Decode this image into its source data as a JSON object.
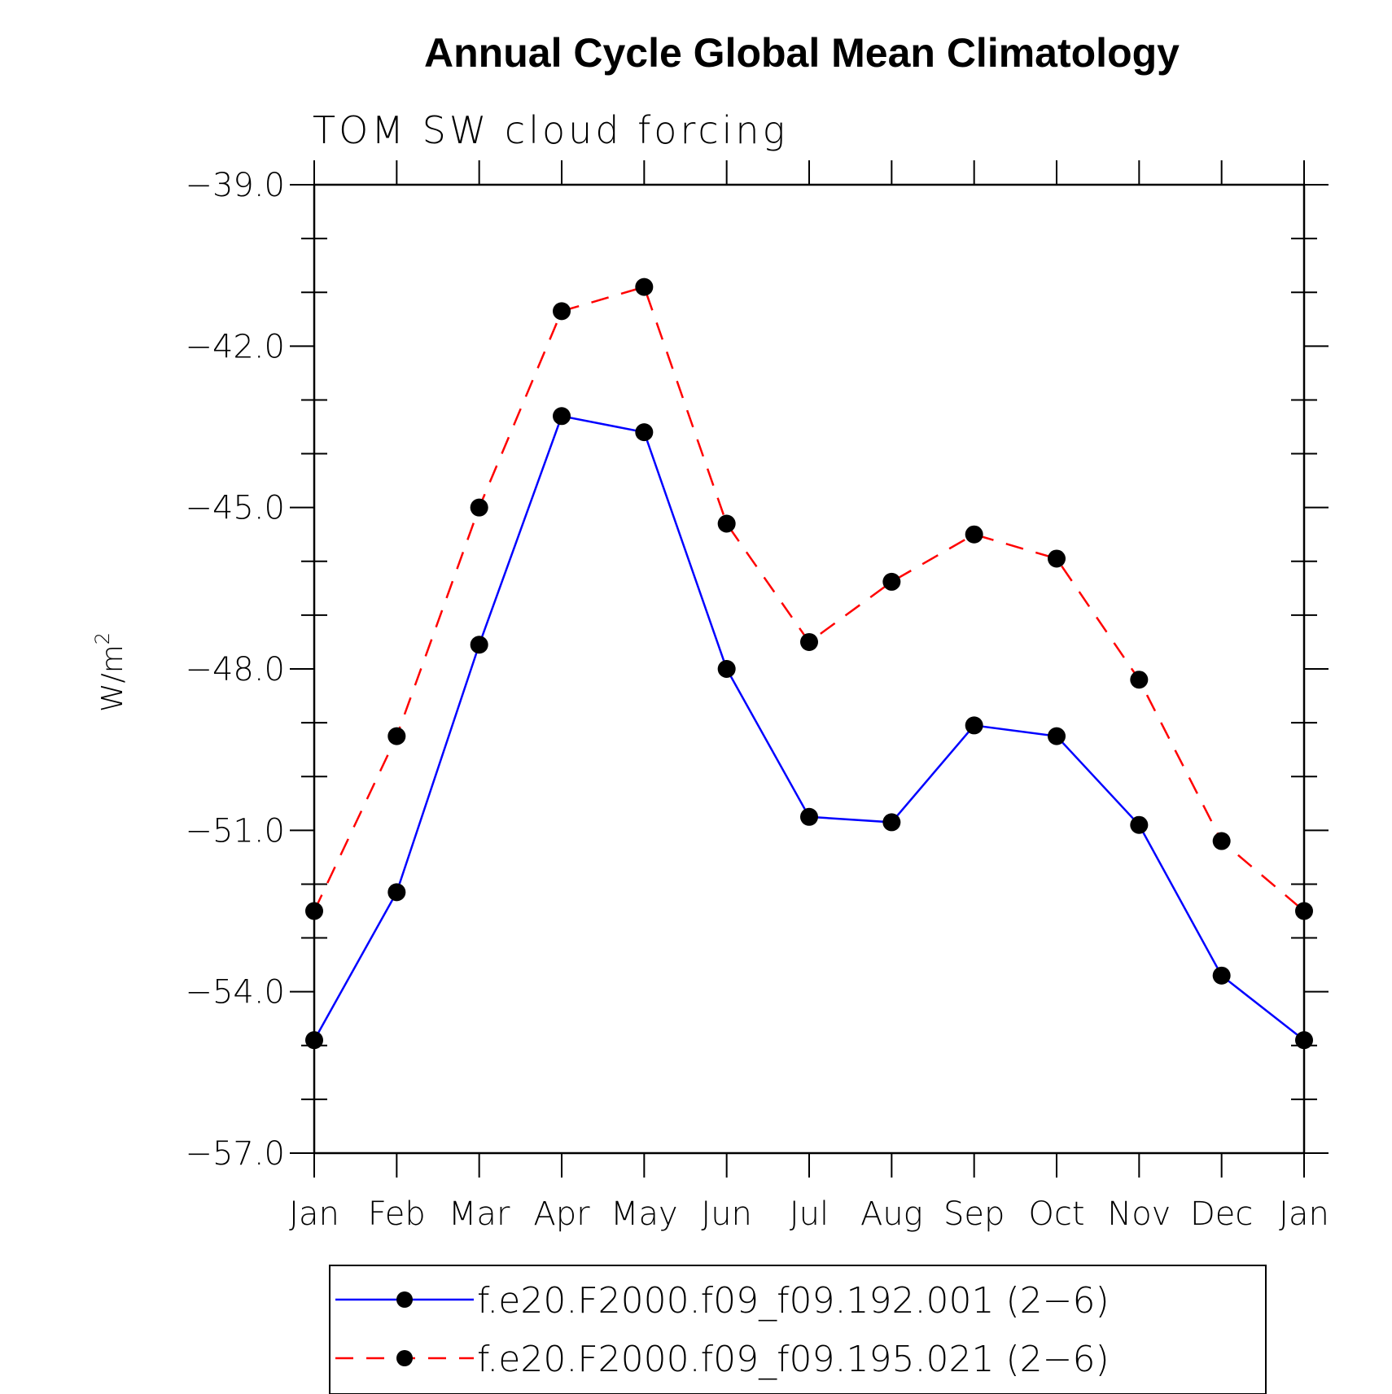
{
  "chart_data": {
    "type": "line",
    "title": "Annual Cycle Global Mean Climatology",
    "subtitle": "TOM SW cloud forcing",
    "ylabel": "W/m",
    "ylabel_sup": "2",
    "xlabel": "",
    "categories": [
      "Jan",
      "Feb",
      "Mar",
      "Apr",
      "May",
      "Jun",
      "Jul",
      "Aug",
      "Sep",
      "Oct",
      "Nov",
      "Dec",
      "Jan"
    ],
    "ylim": [
      -57.0,
      -39.0
    ],
    "yticks": [
      -39.0,
      -42.0,
      -45.0,
      -48.0,
      -51.0,
      -54.0,
      -57.0
    ],
    "ytick_labels": [
      "−39.0",
      "−42.0",
      "−45.0",
      "−48.0",
      "−51.0",
      "−54.0",
      "−57.0"
    ],
    "grid": false,
    "legend_position": "bottom",
    "series": [
      {
        "name": "f.e20.F2000.f09_f09.192.001 (2−6)",
        "color": "#0000ff",
        "style": "solid",
        "marker": "dot",
        "values": [
          -54.9,
          -52.15,
          -47.55,
          -43.3,
          -43.6,
          -48.0,
          -50.75,
          -50.85,
          -49.05,
          -49.25,
          -50.9,
          -53.7,
          -54.9
        ]
      },
      {
        "name": "f.e20.F2000.f09_f09.195.021 (2−6)",
        "color": "#ff0000",
        "style": "dashed",
        "marker": "dot",
        "values": [
          -52.5,
          -49.25,
          -45.0,
          -41.35,
          -40.9,
          -45.3,
          -47.5,
          -46.38,
          -45.5,
          -45.95,
          -48.2,
          -51.2,
          -52.5
        ]
      }
    ]
  }
}
